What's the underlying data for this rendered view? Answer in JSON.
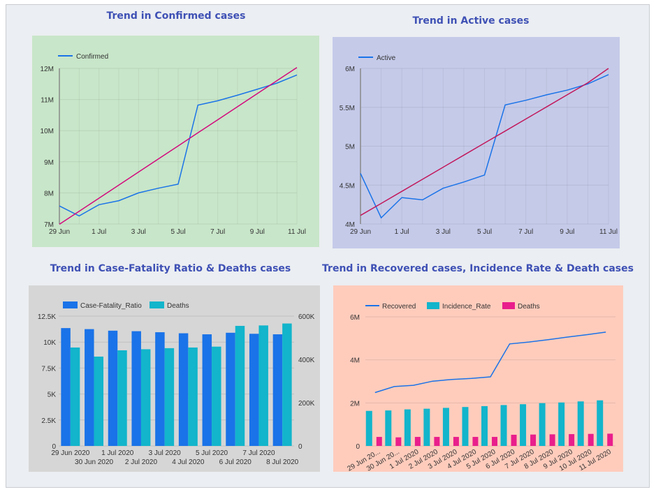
{
  "page": {
    "titles": [
      "Trend in Confirmed cases",
      "Trend in Active cases",
      "Trend in Case-Fatality Ratio & Deaths cases",
      "Trend in Recovered cases, Incidence Rate & Death cases"
    ]
  },
  "chart_data": [
    {
      "type": "line",
      "title": "Trend in Confirmed cases",
      "background": "#c8e6c9",
      "x": [
        "29 Jun",
        "30 Jun",
        "1 Jul",
        "2 Jul",
        "3 Jul",
        "4 Jul",
        "5 Jul",
        "6 Jul",
        "7 Jul",
        "8 Jul",
        "9 Jul",
        "10 Jul",
        "11 Jul"
      ],
      "x_tick_labels": [
        "29 Jun",
        "1 Jul",
        "3 Jul",
        "5 Jul",
        "7 Jul",
        "9 Jul",
        "11 Jul"
      ],
      "y_ticks": [
        7000000,
        8000000,
        9000000,
        10000000,
        11000000,
        12000000
      ],
      "y_tick_labels": [
        "7M",
        "8M",
        "9M",
        "10M",
        "11M",
        "12M"
      ],
      "ylim": [
        7000000,
        12000000
      ],
      "legend_position": "top-left",
      "series": [
        {
          "name": "Confirmed",
          "color": "#1a73e8",
          "values": [
            7580000,
            7260000,
            7620000,
            7750000,
            8000000,
            8150000,
            8280000,
            10820000,
            10960000,
            11140000,
            11330000,
            11530000,
            11790000
          ]
        },
        {
          "trendline": true,
          "color": "#d3097d",
          "values": [
            6990000,
            7410000,
            7830000,
            8250000,
            8670000,
            9090000,
            9510000,
            9930000,
            10350000,
            10770000,
            11190000,
            11610000,
            12030000
          ]
        }
      ]
    },
    {
      "type": "line",
      "title": "Trend in Active cases",
      "background": "#c5cae9",
      "x": [
        "29 Jun",
        "30 Jun",
        "1 Jul",
        "2 Jul",
        "3 Jul",
        "4 Jul",
        "5 Jul",
        "6 Jul",
        "7 Jul",
        "8 Jul",
        "9 Jul",
        "10 Jul",
        "11 Jul"
      ],
      "x_tick_labels": [
        "29 Jun",
        "1 Jul",
        "3 Jul",
        "5 Jul",
        "7 Jul",
        "9 Jul",
        "11 Jul"
      ],
      "y_ticks": [
        4000000,
        4500000,
        5000000,
        5500000,
        6000000
      ],
      "y_tick_labels": [
        "4M",
        "4.5M",
        "5M",
        "5.5M",
        "6M"
      ],
      "ylim": [
        4000000,
        6000000
      ],
      "legend_position": "top-left",
      "series": [
        {
          "name": "Active",
          "color": "#1a73e8",
          "values": [
            4650000,
            4080000,
            4340000,
            4310000,
            4460000,
            4540000,
            4630000,
            5530000,
            5590000,
            5660000,
            5720000,
            5800000,
            5920000
          ]
        },
        {
          "trendline": true,
          "color": "#c2185b",
          "values": [
            4110000,
            4265000,
            4420000,
            4575000,
            4730000,
            4885000,
            5040000,
            5195000,
            5350000,
            5505000,
            5660000,
            5815000,
            6000000
          ]
        }
      ]
    },
    {
      "type": "bar",
      "title": "Trend in Case-Fatality Ratio & Deaths cases",
      "background": "#d6d6d6",
      "categories": [
        "29 Jun 2020",
        "30 Jun 2020",
        "1 Jul 2020",
        "2 Jul 2020",
        "3 Jul 2020",
        "4 Jul 2020",
        "5 Jul 2020",
        "6 Jul 2020",
        "7 Jul 2020",
        "8 Jul 2020"
      ],
      "y_left_ticks": [
        0,
        2500,
        5000,
        7500,
        10000,
        12500
      ],
      "y_left_tick_labels": [
        "0",
        "2.5K",
        "5K",
        "7.5K",
        "10K",
        "12.5K"
      ],
      "y_right_ticks": [
        0,
        200000,
        400000,
        600000
      ],
      "y_right_tick_labels": [
        "0",
        "200K",
        "400K",
        "600K"
      ],
      "ylim_left": [
        0,
        12500
      ],
      "ylim_right": [
        0,
        600000
      ],
      "legend_position": "top-left",
      "series": [
        {
          "name": "Case-Fatality_Ratio",
          "color": "#1a73e8",
          "axis": "left",
          "values": [
            11350,
            11250,
            11100,
            11050,
            10950,
            10850,
            10750,
            10900,
            10800,
            10750
          ]
        },
        {
          "name": "Deaths",
          "color": "#12b5cb",
          "axis": "right",
          "values": [
            455000,
            413000,
            442000,
            447000,
            452000,
            455000,
            459000,
            555000,
            557000,
            566000
          ]
        }
      ]
    },
    {
      "type": "bar",
      "title": "Trend in Recovered cases, Incidence Rate & Death cases",
      "background": "#ffccbc",
      "categories": [
        "29 Jun 2020",
        "30 Jun 2020",
        "1 Jul 2020",
        "2 Jul 2020",
        "3 Jul 2020",
        "4 Jul 2020",
        "5 Jul 2020",
        "6 Jul 2020",
        "7 Jul 2020",
        "8 Jul 2020",
        "9 Jul 2020",
        "10 Jul 2020",
        "11 Jul 2020"
      ],
      "category_tick_labels": [
        "29 Jun 20...",
        "30 Jun 20...",
        "1 Jul 2020",
        "2 Jul 2020",
        "3 Jul 2020",
        "4 Jul 2020",
        "5 Jul 2020",
        "6 Jul 2020",
        "7 Jul 2020",
        "8 Jul 2020",
        "9 Jul 2020",
        "10 Jul 2020",
        "11 Jul 2020"
      ],
      "y_ticks": [
        0,
        2000000,
        4000000,
        6000000
      ],
      "y_tick_labels": [
        "0",
        "2M",
        "4M",
        "6M"
      ],
      "ylim": [
        0,
        6000000
      ],
      "legend_position": "top-left",
      "series": [
        {
          "name": "Recovered",
          "type": "line",
          "color": "#1a73e8",
          "values": [
            2480000,
            2760000,
            2820000,
            3010000,
            3090000,
            3140000,
            3210000,
            4740000,
            4830000,
            4940000,
            5060000,
            5170000,
            5290000
          ]
        },
        {
          "name": "Incidence_Rate",
          "type": "bar",
          "color": "#12b5cb",
          "values": [
            1630000,
            1650000,
            1700000,
            1730000,
            1770000,
            1810000,
            1850000,
            1900000,
            1940000,
            1990000,
            2020000,
            2070000,
            2120000
          ]
        },
        {
          "name": "Deaths",
          "type": "bar",
          "color": "#e91e8c",
          "values": [
            420000,
            400000,
            420000,
            420000,
            420000,
            420000,
            420000,
            520000,
            530000,
            540000,
            550000,
            560000,
            570000
          ]
        }
      ]
    }
  ]
}
